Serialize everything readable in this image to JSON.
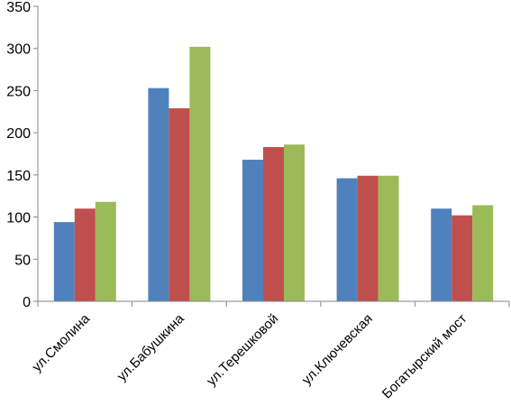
{
  "chart_data": {
    "type": "bar",
    "title": "",
    "xlabel": "",
    "ylabel": "",
    "ylim": [
      0,
      350
    ],
    "yticks": [
      0,
      50,
      100,
      150,
      200,
      250,
      300,
      350
    ],
    "grid": false,
    "legend": "none",
    "categories": [
      "ул.Смолина",
      "ул.Бабушкина",
      "ул.Терешковой",
      "ул.Ключевская",
      "Богатырский мост"
    ],
    "series": [
      {
        "color": "#4F81BD",
        "values": [
          94,
          253,
          168,
          146,
          110
        ]
      },
      {
        "color": "#C0504D",
        "values": [
          110,
          229,
          183,
          149,
          102
        ]
      },
      {
        "color": "#9BBB59",
        "values": [
          118,
          302,
          186,
          149,
          114
        ]
      }
    ]
  }
}
